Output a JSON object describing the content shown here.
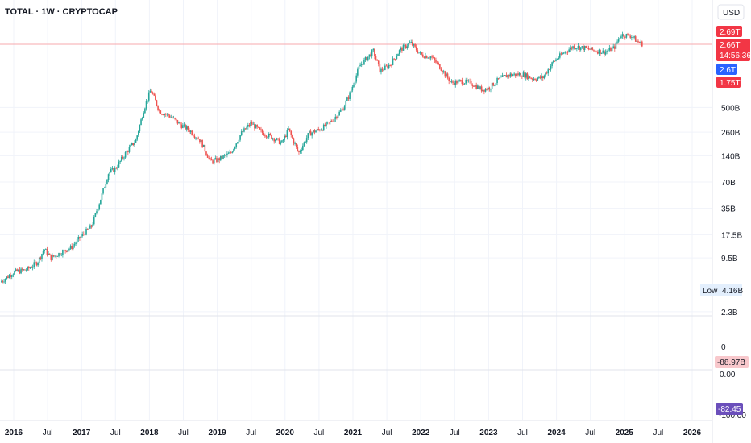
{
  "header": {
    "ticker": "TOTAL · 1W · CRYPTOCAP",
    "currency": "USD"
  },
  "price_tags": {
    "high": "2.69T",
    "last": "2.66T",
    "countdown": "14:56:36",
    "blue": "2.6T",
    "red": "1.75T"
  },
  "low_label": {
    "label": "Low",
    "value": "4.16B"
  },
  "indicator_labels": {
    "zero_top": "0",
    "value_top": "-88.97B",
    "zero_bottom": "0.00",
    "value_bottom": "-82.45",
    "bottom_tick": "-100.00"
  },
  "colors": {
    "up": "#26a69a",
    "down": "#ef5350",
    "grid": "#f0f3fa",
    "blue_tag": "#2962ff",
    "red_tag": "#f23645",
    "low_bg": "#e3effd",
    "pink_bg": "#f8c8cc",
    "purple_bg": "#6b4fbb",
    "hline": "#f7a9ae"
  },
  "chart_data": {
    "type": "candlestick",
    "title": "TOTAL · 1W · CRYPTOCAP",
    "scale": "log",
    "y_unit": "USD",
    "y_ticks": [
      "500B",
      "260B",
      "140B",
      "70B",
      "35B",
      "17.5B",
      "9.5B",
      "2.3B"
    ],
    "y_tick_values_billion": [
      500,
      260,
      140,
      70,
      35,
      17.5,
      9.5,
      2.3
    ],
    "x_ticks": [
      "2016",
      "Jul",
      "2017",
      "Jul",
      "2018",
      "Jul",
      "2019",
      "Jul",
      "2020",
      "Jul",
      "2021",
      "Jul",
      "2022",
      "Jul",
      "2023",
      "Jul",
      "2024",
      "Jul",
      "2025",
      "Jul",
      "2026"
    ],
    "x_tick_years": [
      2016.0,
      2016.5,
      2017.0,
      2017.5,
      2018.0,
      2018.5,
      2019.0,
      2019.5,
      2020.0,
      2020.5,
      2021.0,
      2021.5,
      2022.0,
      2022.5,
      2023.0,
      2023.5,
      2024.0,
      2024.5,
      2025.0,
      2025.5,
      2026.0
    ],
    "series": [
      {
        "values_billion": [
          [
            2015.8,
            5.0
          ],
          [
            2016.0,
            6.5
          ],
          [
            2016.2,
            7.0
          ],
          [
            2016.35,
            8.5
          ],
          [
            2016.45,
            12.0
          ],
          [
            2016.55,
            9.5
          ],
          [
            2016.7,
            11.0
          ],
          [
            2016.85,
            12.5
          ],
          [
            2017.0,
            17.0
          ],
          [
            2017.15,
            22.0
          ],
          [
            2017.3,
            50.0
          ],
          [
            2017.4,
            90.0
          ],
          [
            2017.5,
            100.0
          ],
          [
            2017.65,
            150.0
          ],
          [
            2017.8,
            210.0
          ],
          [
            2017.92,
            480.0
          ],
          [
            2018.02,
            800.0
          ],
          [
            2018.15,
            450.0
          ],
          [
            2018.3,
            400.0
          ],
          [
            2018.45,
            320.0
          ],
          [
            2018.6,
            270.0
          ],
          [
            2018.75,
            210.0
          ],
          [
            2018.9,
            120.0
          ],
          [
            2019.0,
            125.0
          ],
          [
            2019.2,
            150.0
          ],
          [
            2019.35,
            250.0
          ],
          [
            2019.5,
            330.0
          ],
          [
            2019.65,
            260.0
          ],
          [
            2019.8,
            230.0
          ],
          [
            2019.95,
            195.0
          ],
          [
            2020.05,
            280.0
          ],
          [
            2020.2,
            150.0
          ],
          [
            2020.35,
            250.0
          ],
          [
            2020.55,
            290.0
          ],
          [
            2020.7,
            360.0
          ],
          [
            2020.85,
            480.0
          ],
          [
            2020.95,
            700.0
          ],
          [
            2021.1,
            1500.0
          ],
          [
            2021.3,
            2200.0
          ],
          [
            2021.4,
            1300.0
          ],
          [
            2021.55,
            1550.0
          ],
          [
            2021.7,
            2300.0
          ],
          [
            2021.85,
            2750.0
          ],
          [
            2022.0,
            2000.0
          ],
          [
            2022.15,
            1900.0
          ],
          [
            2022.3,
            1400.0
          ],
          [
            2022.45,
            950.0
          ],
          [
            2022.6,
            1000.0
          ],
          [
            2022.75,
            940.0
          ],
          [
            2022.9,
            800.0
          ],
          [
            2023.0,
            830.0
          ],
          [
            2023.15,
            1050.0
          ],
          [
            2023.3,
            1180.0
          ],
          [
            2023.5,
            1200.0
          ],
          [
            2023.65,
            1070.0
          ],
          [
            2023.8,
            1100.0
          ],
          [
            2023.95,
            1650.0
          ],
          [
            2024.1,
            2100.0
          ],
          [
            2024.25,
            2500.0
          ],
          [
            2024.4,
            2400.0
          ],
          [
            2024.55,
            2250.0
          ],
          [
            2024.7,
            2150.0
          ],
          [
            2024.85,
            2400.0
          ],
          [
            2024.95,
            3400.0
          ],
          [
            2025.1,
            3300.0
          ],
          [
            2025.2,
            2800.0
          ],
          [
            2025.27,
            2660.0
          ]
        ]
      }
    ]
  }
}
